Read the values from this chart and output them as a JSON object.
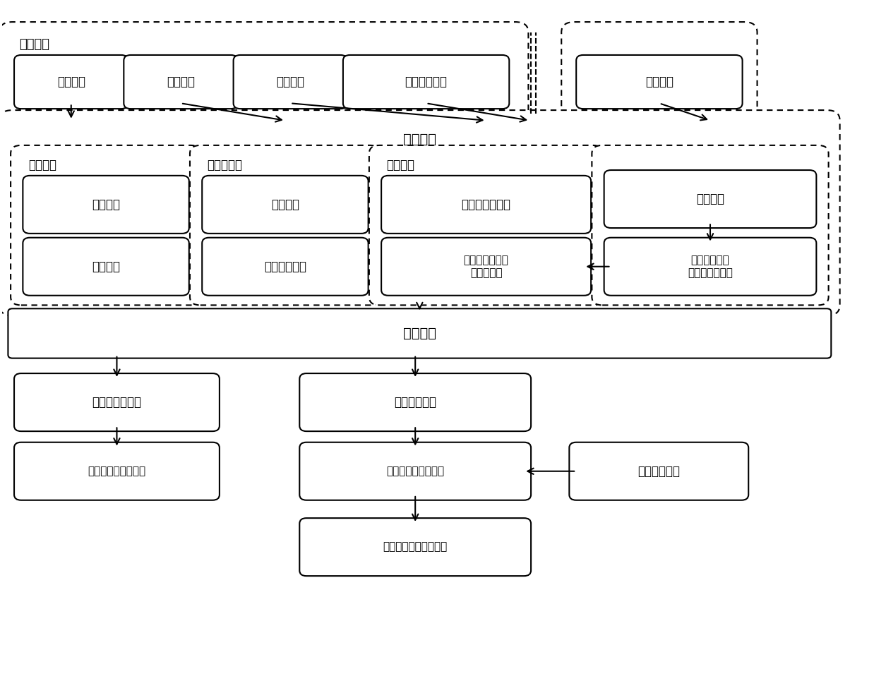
{
  "background_color": "#ffffff",
  "font_family": "WenQuanYi Zen Hei",
  "boxes_top": [
    {
      "id": "energy_param",
      "text": "储能参数"
    },
    {
      "id": "time_price",
      "text": "分时电价"
    },
    {
      "id": "user_demand",
      "text": "用户需求"
    },
    {
      "id": "outdoor_temp",
      "text": "预测室外温度"
    },
    {
      "id": "history_data",
      "text": "历史数据"
    }
  ],
  "label_input": "输入数据",
  "label_optim": "优化模型",
  "label_energy_model": "储能模型",
  "label_trade_model": "购售电模型",
  "label_load_model": "负荷模型",
  "boxes_inner": [
    {
      "id": "econ_model",
      "text": "经济模型"
    },
    {
      "id": "constraint",
      "text": "约束条件"
    },
    {
      "id": "price_model",
      "text": "电价模型"
    },
    {
      "id": "power_balance",
      "text": "功率平衡约束"
    },
    {
      "id": "shiftable_load",
      "text": "可平移负荷模型"
    },
    {
      "id": "thermal_model",
      "text": "空调所属建筑物\n热力学模型"
    },
    {
      "id": "param_fit",
      "text": "参数拟合"
    },
    {
      "id": "ac_efficiency",
      "text": "空调能效比系\n数、建筑物参数"
    }
  ],
  "boxes_bottom": [
    {
      "id": "daily_optim",
      "text": "日前优化"
    },
    {
      "id": "charge_plan",
      "text": "储能充放电计划"
    },
    {
      "id": "shift_load_plan",
      "text": "可平移负荷用电计划"
    },
    {
      "id": "ac_optim_temp",
      "text": "空调优化温度"
    },
    {
      "id": "ac_adaptive",
      "text": "空调温度自适应模型"
    },
    {
      "id": "env_dynamic",
      "text": "环境动态变化"
    },
    {
      "id": "online_adjust",
      "text": "在线调整空调设定温度"
    }
  ]
}
